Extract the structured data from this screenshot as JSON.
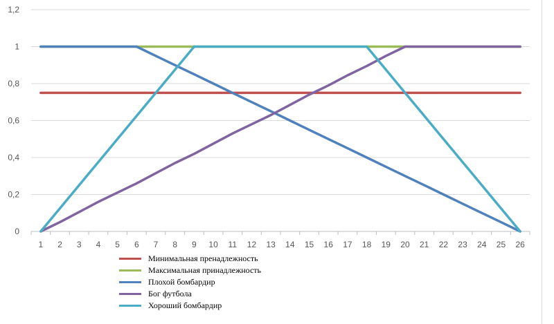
{
  "chart_data": {
    "type": "line",
    "categories": [
      1,
      2,
      3,
      4,
      5,
      6,
      7,
      8,
      9,
      10,
      11,
      12,
      13,
      14,
      15,
      16,
      17,
      18,
      19,
      20,
      21,
      22,
      23,
      24,
      25,
      26
    ],
    "ylim": [
      0,
      1.2
    ],
    "yticks": [
      "0",
      "0,2",
      "0,4",
      "0,6",
      "0,8",
      "1",
      "1,2"
    ],
    "grid": true,
    "legend_position": "bottom-left",
    "series": [
      {
        "name": "Минимальная пренадлежность",
        "color": "#c0504d",
        "values": [
          0.75,
          0.75,
          0.75,
          0.75,
          0.75,
          0.75,
          0.75,
          0.75,
          0.75,
          0.75,
          0.75,
          0.75,
          0.75,
          0.75,
          0.75,
          0.75,
          0.75,
          0.75,
          0.75,
          0.75,
          0.75,
          0.75,
          0.75,
          0.75,
          0.75,
          0.75
        ]
      },
      {
        "name": "Максимальная принадлежность",
        "color": "#9bbb59",
        "values": [
          1,
          1,
          1,
          1,
          1,
          1,
          1,
          1,
          1,
          1,
          1,
          1,
          1,
          1,
          1,
          1,
          1,
          1,
          1,
          1,
          1,
          1,
          1,
          1,
          1,
          1
        ]
      },
      {
        "name": "Плохой бомбардир",
        "color": "#4f81bd",
        "values": [
          1,
          1,
          1,
          1,
          1,
          1,
          0.95,
          0.9,
          0.85,
          0.8,
          0.75,
          0.7,
          0.65,
          0.6,
          0.55,
          0.5,
          0.45,
          0.4,
          0.35,
          0.3,
          0.25,
          0.2,
          0.15,
          0.1,
          0.05,
          0
        ]
      },
      {
        "name": "Бог футбола",
        "color": "#8064a2",
        "values": [
          0,
          0.05,
          0.105,
          0.16,
          0.21,
          0.26,
          0.315,
          0.37,
          0.42,
          0.475,
          0.53,
          0.58,
          0.63,
          0.685,
          0.74,
          0.79,
          0.845,
          0.895,
          0.95,
          1,
          1,
          1,
          1,
          1,
          1,
          1
        ]
      },
      {
        "name": "Хороший бомбардир",
        "color": "#4bacc6",
        "values": [
          0,
          0.125,
          0.25,
          0.375,
          0.5,
          0.625,
          0.75,
          0.875,
          1,
          1,
          1,
          1,
          1,
          1,
          1,
          1,
          1,
          1,
          0.875,
          0.75,
          0.625,
          0.5,
          0.375,
          0.25,
          0.125,
          0
        ]
      }
    ]
  }
}
